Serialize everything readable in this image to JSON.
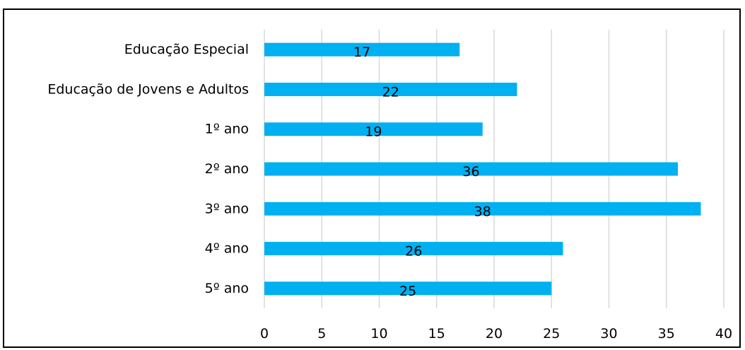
{
  "chart_data": {
    "type": "bar",
    "orientation": "horizontal",
    "categories": [
      "Educação Especial",
      "Educação de Jovens e Adultos",
      "1º ano",
      "2º ano",
      "3º ano",
      "4º ano",
      "5º ano"
    ],
    "values": [
      17,
      22,
      19,
      36,
      38,
      26,
      25
    ],
    "xlim": [
      0,
      40
    ],
    "xticks": [
      0,
      5,
      10,
      15,
      20,
      25,
      30,
      35,
      40
    ],
    "title": "",
    "xlabel": "",
    "ylabel": "",
    "grid": "vertical",
    "legend": "none",
    "data_labels": true
  },
  "colors": {
    "bar": "#00b0f0",
    "grid": "#d9d9d9",
    "border": "#000000"
  }
}
